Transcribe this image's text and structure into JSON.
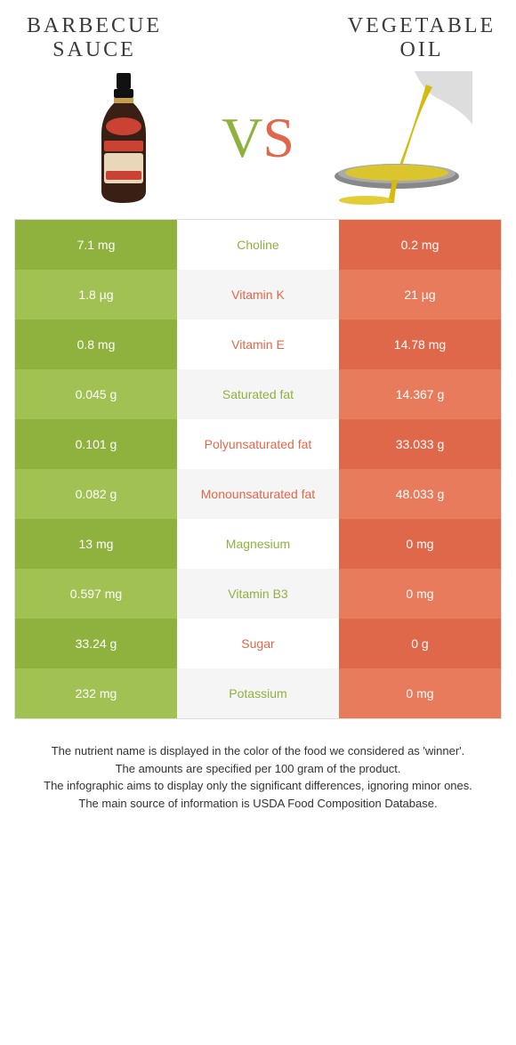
{
  "titles": {
    "left": "BARBECUE SAUCE",
    "right": "VEGETABLE OIL"
  },
  "vs": {
    "left_char": "V",
    "right_char": "S"
  },
  "colors": {
    "left_dark": "#8fb23f",
    "left_light": "#a1c253",
    "right_dark": "#e0684a",
    "right_light": "#e87b5c",
    "winner_left": "#8fb23f",
    "winner_right": "#e0684a"
  },
  "rows": [
    {
      "left": "7.1 mg",
      "label": "Choline",
      "right": "0.2 mg",
      "winner": "left"
    },
    {
      "left": "1.8 µg",
      "label": "Vitamin K",
      "right": "21 µg",
      "winner": "right"
    },
    {
      "left": "0.8 mg",
      "label": "Vitamin E",
      "right": "14.78 mg",
      "winner": "right"
    },
    {
      "left": "0.045 g",
      "label": "Saturated fat",
      "right": "14.367 g",
      "winner": "left"
    },
    {
      "left": "0.101 g",
      "label": "Polyunsaturated fat",
      "right": "33.033 g",
      "winner": "right"
    },
    {
      "left": "0.082 g",
      "label": "Monounsaturated fat",
      "right": "48.033 g",
      "winner": "right"
    },
    {
      "left": "13 mg",
      "label": "Magnesium",
      "right": "0 mg",
      "winner": "left"
    },
    {
      "left": "0.597 mg",
      "label": "Vitamin B3",
      "right": "0 mg",
      "winner": "left"
    },
    {
      "left": "33.24 g",
      "label": "Sugar",
      "right": "0 g",
      "winner": "right"
    },
    {
      "left": "232 mg",
      "label": "Potassium",
      "right": "0 mg",
      "winner": "left"
    }
  ],
  "footnotes": [
    "The nutrient name is displayed in the color of the food we considered as 'winner'.",
    "The amounts are specified per 100 gram of the product.",
    "The infographic aims to display only the significant differences, ignoring minor ones.",
    "The main source of information is USDA Food Composition Database."
  ]
}
